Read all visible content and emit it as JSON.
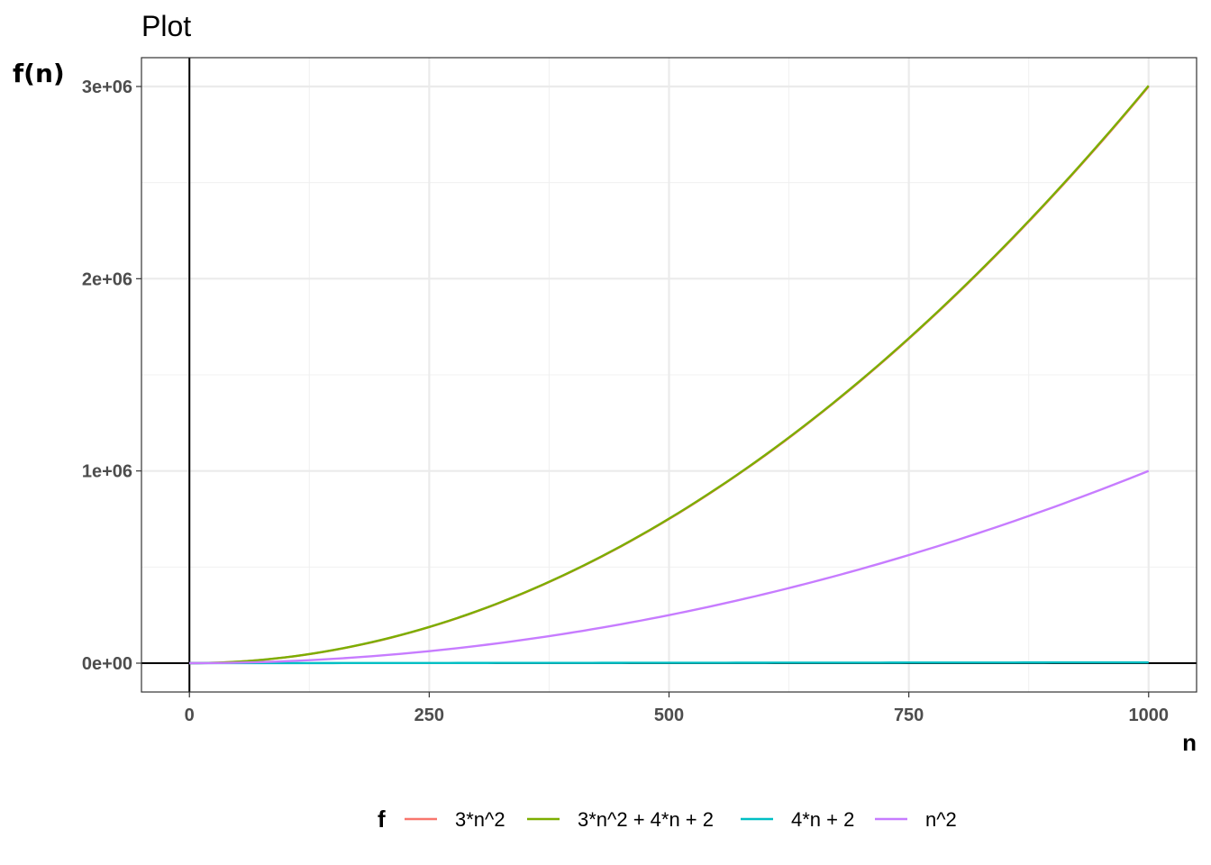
{
  "chart_data": {
    "type": "line",
    "title": "Plot",
    "xlabel": "n",
    "ylabel": "f(n)",
    "xlim": [
      -50,
      1050
    ],
    "ylim": [
      -150000,
      3150000
    ],
    "x_ticks": [
      0,
      250,
      500,
      750,
      1000
    ],
    "x_tick_labels": [
      "0",
      "250",
      "500",
      "750",
      "1000"
    ],
    "y_ticks": [
      0,
      1000000,
      2000000,
      3000000
    ],
    "y_tick_labels": [
      "0e+00",
      "1e+06",
      "2e+06",
      "3e+06"
    ],
    "grid": true,
    "reference_lines": {
      "x": 0,
      "y": 0
    },
    "legend": {
      "title": "f",
      "position": "bottom"
    },
    "series": [
      {
        "name": "3*n^2",
        "color": "#F8766D",
        "x": [
          0,
          100,
          200,
          300,
          400,
          500,
          600,
          700,
          800,
          900,
          1000
        ],
        "values": [
          0,
          30000,
          120000,
          270000,
          480000,
          750000,
          1080000,
          1470000,
          1920000,
          2430000,
          3000000
        ]
      },
      {
        "name": "3*n^2 + 4*n + 2",
        "color": "#7CAE00",
        "x": [
          0,
          100,
          200,
          300,
          400,
          500,
          600,
          700,
          800,
          900,
          1000
        ],
        "values": [
          2,
          30402,
          120802,
          271202,
          481602,
          752002,
          1082402,
          1472802,
          1923202,
          2433602,
          3004002
        ]
      },
      {
        "name": "4*n + 2",
        "color": "#00BFC4",
        "x": [
          0,
          100,
          200,
          300,
          400,
          500,
          600,
          700,
          800,
          900,
          1000
        ],
        "values": [
          2,
          402,
          802,
          1202,
          1602,
          2002,
          2402,
          2802,
          3202,
          3602,
          4002
        ]
      },
      {
        "name": "n^2",
        "color": "#C77CFF",
        "x": [
          0,
          100,
          200,
          300,
          400,
          500,
          600,
          700,
          800,
          900,
          1000
        ],
        "values": [
          0,
          10000,
          40000,
          90000,
          160000,
          250000,
          360000,
          490000,
          640000,
          810000,
          1000000
        ]
      }
    ]
  }
}
